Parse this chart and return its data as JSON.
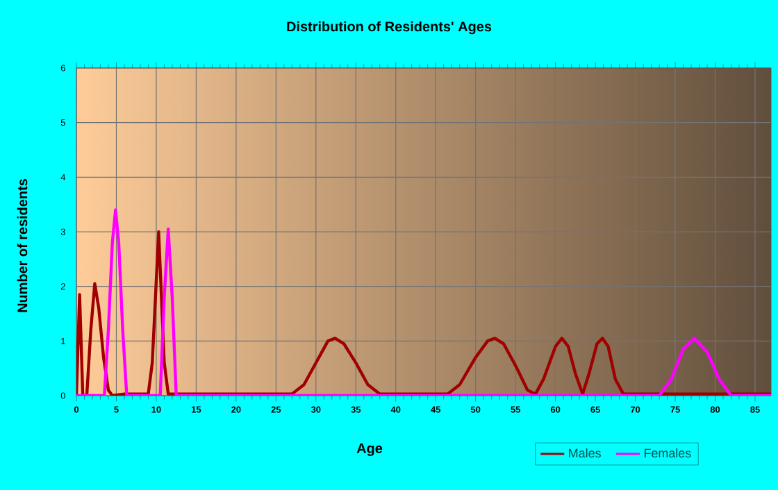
{
  "chart_data": {
    "type": "line",
    "title": "Distribution of Residents' Ages",
    "xlabel": "Age",
    "ylabel": "Number of residents",
    "xlim": [
      0,
      87
    ],
    "xticks": [
      0,
      5,
      10,
      15,
      20,
      25,
      30,
      35,
      40,
      45,
      50,
      55,
      60,
      65,
      70,
      75,
      80,
      85
    ],
    "ylim": [
      0,
      6
    ],
    "yticks": [
      0,
      1,
      2,
      3,
      4,
      5,
      6
    ],
    "grid": true,
    "legend": "bottom right",
    "series": [
      {
        "name": "Males",
        "color": "#a00000",
        "x": [
          0,
          0.4,
          0.8,
          1.3,
          1.8,
          2.3,
          2.8,
          3.4,
          4,
          4.5,
          6,
          9,
          9.5,
          10.3,
          11,
          11.5,
          27,
          28.5,
          30,
          31.5,
          32.4,
          33.5,
          35,
          36.5,
          38,
          45,
          46.5,
          48,
          50,
          51.5,
          52.4,
          53.5,
          55,
          56.5,
          57.5,
          58.5,
          60,
          60.8,
          61.6,
          62.5,
          63.4,
          64.2,
          65.2,
          65.9,
          66.6,
          67.5,
          68.5,
          87
        ],
        "values": [
          0,
          1.85,
          0,
          0,
          1.2,
          2.05,
          1.6,
          0.7,
          0.1,
          0,
          0.03,
          0.03,
          0.6,
          3.0,
          0.6,
          0.03,
          0.03,
          0.2,
          0.6,
          1.0,
          1.05,
          0.95,
          0.6,
          0.2,
          0.03,
          0.03,
          0.03,
          0.2,
          0.7,
          1.0,
          1.05,
          0.95,
          0.55,
          0.1,
          0.03,
          0.3,
          0.9,
          1.05,
          0.9,
          0.4,
          0.03,
          0.4,
          0.95,
          1.05,
          0.9,
          0.3,
          0.03,
          0.03
        ]
      },
      {
        "name": "Females",
        "color": "#ff00ff",
        "x": [
          0,
          3.5,
          4,
          4.5,
          4.9,
          5.3,
          5.8,
          6.3,
          10.5,
          11,
          11.5,
          12,
          12.5,
          73,
          74.5,
          76,
          77.4,
          79,
          80.5,
          82,
          87
        ],
        "values": [
          0,
          0,
          1.2,
          2.8,
          3.4,
          2.8,
          1.2,
          0,
          0,
          1.8,
          3.05,
          1.8,
          0,
          0,
          0.3,
          0.85,
          1.05,
          0.8,
          0.3,
          0,
          0
        ]
      }
    ]
  }
}
